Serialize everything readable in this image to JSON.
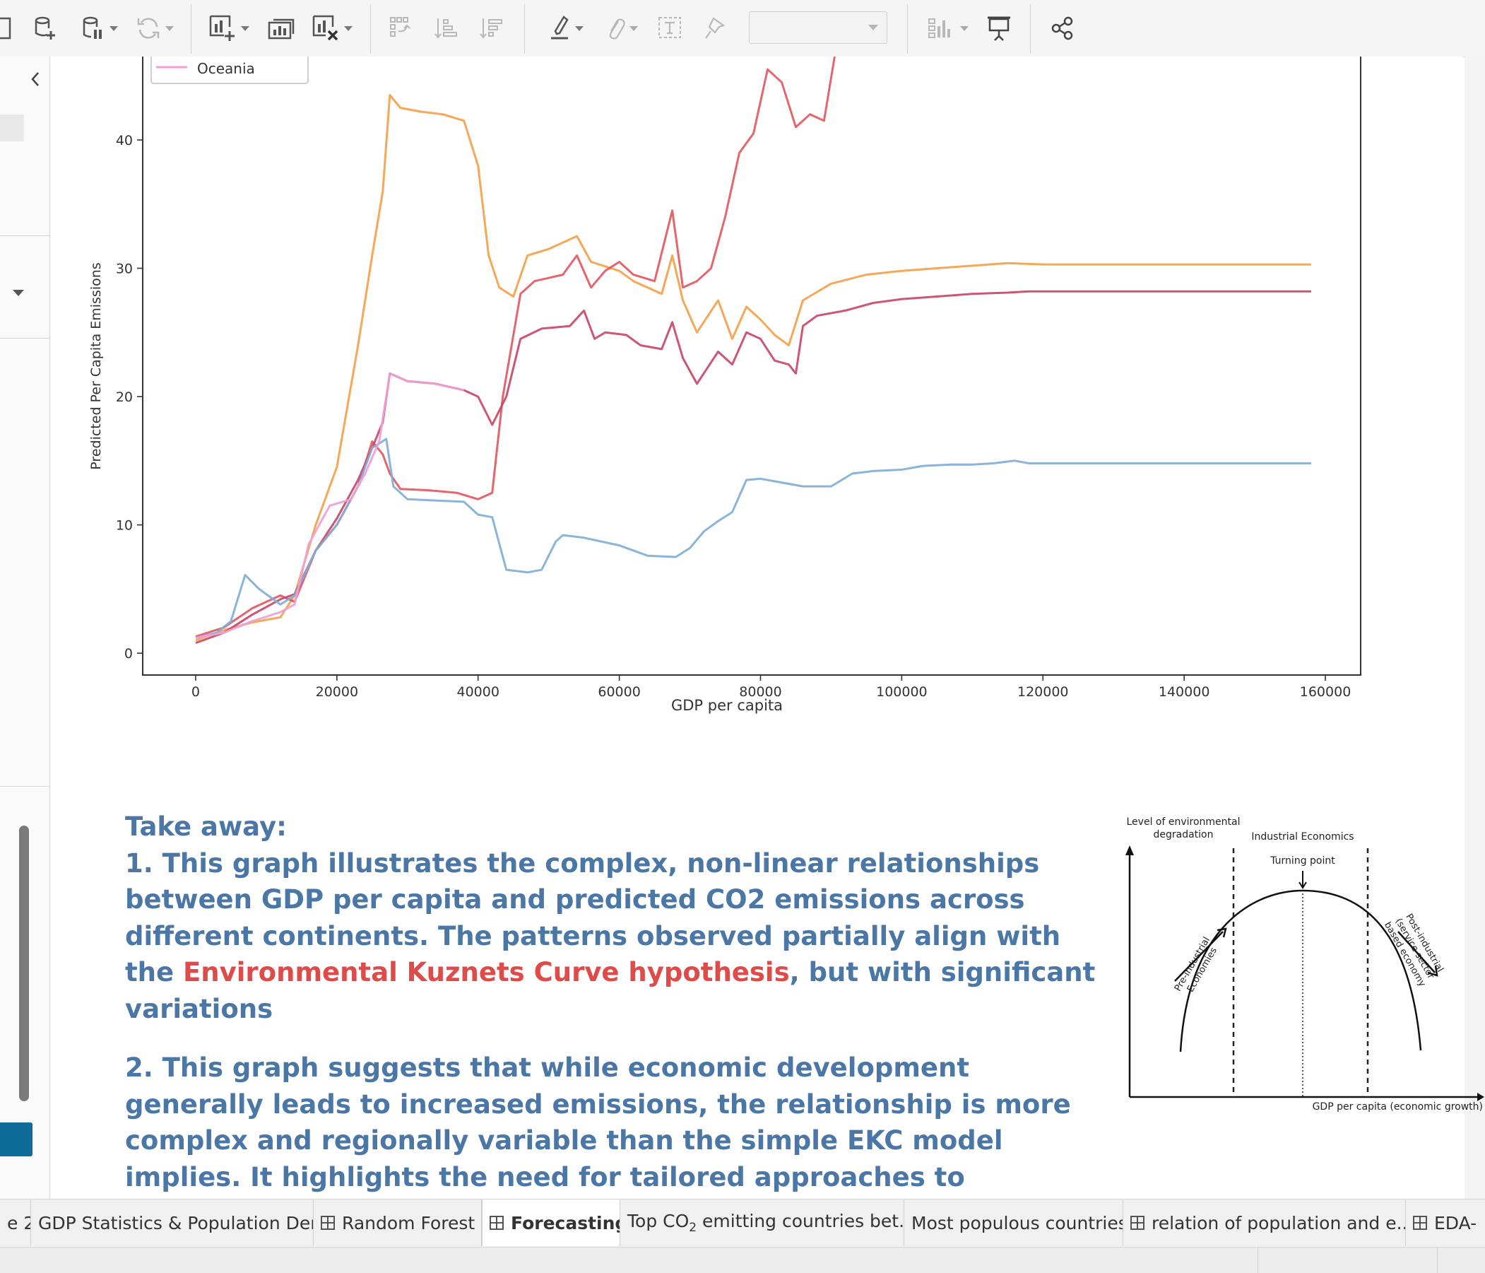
{
  "toolbar": {
    "icons": [
      "new-worksheet-icon",
      "new-data-source-icon",
      "pause-auto-updates-icon",
      "refresh-icon",
      "new-sheet-icon",
      "duplicate-sheet-icon",
      "clear-sheet-icon",
      "swap-rows-columns-icon",
      "sort-ascending-icon",
      "sort-descending-icon",
      "highlight-icon",
      "attach-icon",
      "text-label-icon",
      "pin-icon",
      "show-me-icon",
      "presentation-mode-icon",
      "share-icon"
    ],
    "view_selector_value": ""
  },
  "chart": {
    "legend_visible_entry": "Oceania",
    "xlabel": "GDP per capita",
    "ylabel": "Predicted Per Capita Emissions",
    "x_ticks": [
      "0",
      "20000",
      "40000",
      "60000",
      "80000",
      "100000",
      "120000",
      "140000",
      "160000"
    ],
    "y_ticks": [
      "0",
      "10",
      "20",
      "30",
      "40"
    ]
  },
  "chart_data": {
    "type": "line",
    "xlabel": "GDP per capita",
    "ylabel": "Predicted Per Capita Emissions",
    "xlim": [
      -7500,
      165000
    ],
    "ylim": [
      -1.7,
      46.5
    ],
    "legend": {
      "placement": "top-left",
      "visible_entries": [
        "Oceania"
      ]
    },
    "grid": false,
    "series": [
      {
        "name": "",
        "color": "#f5a04a",
        "points": [
          [
            0,
            1.0
          ],
          [
            4000,
            1.8
          ],
          [
            8000,
            2.4
          ],
          [
            12000,
            2.8
          ],
          [
            14000,
            4.5
          ],
          [
            17000,
            10.0
          ],
          [
            20000,
            14.5
          ],
          [
            23000,
            24.0
          ],
          [
            25000,
            31.0
          ],
          [
            26500,
            36.0
          ],
          [
            27500,
            43.5
          ],
          [
            29000,
            42.5
          ],
          [
            32000,
            42.2
          ],
          [
            35000,
            42.0
          ],
          [
            38000,
            41.5
          ],
          [
            40000,
            38.0
          ],
          [
            41500,
            31.0
          ],
          [
            43000,
            28.5
          ],
          [
            45000,
            27.8
          ],
          [
            47000,
            31.0
          ],
          [
            50000,
            31.5
          ],
          [
            54000,
            32.5
          ],
          [
            56000,
            30.5
          ],
          [
            60000,
            29.8
          ],
          [
            62000,
            29.0
          ],
          [
            66000,
            28.0
          ],
          [
            67500,
            31.0
          ],
          [
            69000,
            27.5
          ],
          [
            71000,
            25.0
          ],
          [
            74000,
            27.5
          ],
          [
            76000,
            24.5
          ],
          [
            78000,
            27.0
          ],
          [
            80000,
            26.0
          ],
          [
            82000,
            24.8
          ],
          [
            84000,
            24.0
          ],
          [
            86000,
            27.5
          ],
          [
            90000,
            28.8
          ],
          [
            95000,
            29.5
          ],
          [
            100000,
            29.8
          ],
          [
            105000,
            30.0
          ],
          [
            110000,
            30.2
          ],
          [
            115000,
            30.4
          ],
          [
            120000,
            30.3
          ],
          [
            158000,
            30.3
          ]
        ]
      },
      {
        "name": "",
        "color": "#e2585f",
        "points": [
          [
            0,
            1.3
          ],
          [
            4000,
            2.0
          ],
          [
            8000,
            3.5
          ],
          [
            12000,
            4.5
          ],
          [
            14000,
            4.0
          ],
          [
            17000,
            8.0
          ],
          [
            20000,
            10.0
          ],
          [
            23000,
            13.0
          ],
          [
            25000,
            16.5
          ],
          [
            26500,
            15.5
          ],
          [
            27500,
            14.0
          ],
          [
            29000,
            12.8
          ],
          [
            33000,
            12.7
          ],
          [
            37000,
            12.5
          ],
          [
            40000,
            12.0
          ],
          [
            42000,
            12.5
          ],
          [
            43500,
            20.0
          ],
          [
            46000,
            28.0
          ],
          [
            48000,
            29.0
          ],
          [
            52000,
            29.5
          ],
          [
            54000,
            31.0
          ],
          [
            56000,
            28.5
          ],
          [
            58000,
            29.8
          ],
          [
            60000,
            30.5
          ],
          [
            62000,
            29.5
          ],
          [
            65000,
            29.0
          ],
          [
            67500,
            34.5
          ],
          [
            69000,
            28.5
          ],
          [
            71000,
            29.0
          ],
          [
            73000,
            30.0
          ],
          [
            75000,
            34.0
          ],
          [
            77000,
            39.0
          ],
          [
            79000,
            40.5
          ],
          [
            81000,
            45.5
          ],
          [
            83000,
            44.5
          ],
          [
            85000,
            41.0
          ],
          [
            87000,
            42.0
          ],
          [
            89000,
            41.5
          ],
          [
            90500,
            46.5
          ]
        ]
      },
      {
        "name": "",
        "color": "#c9486a",
        "points": [
          [
            0,
            0.8
          ],
          [
            4000,
            1.6
          ],
          [
            8000,
            3.0
          ],
          [
            12000,
            4.2
          ],
          [
            14000,
            4.6
          ],
          [
            17000,
            8.0
          ],
          [
            20000,
            10.5
          ],
          [
            23000,
            13.5
          ],
          [
            25000,
            16.0
          ],
          [
            26500,
            18.0
          ],
          [
            27500,
            21.8
          ],
          [
            30000,
            21.2
          ],
          [
            34000,
            21.0
          ],
          [
            38000,
            20.5
          ],
          [
            40000,
            20.0
          ],
          [
            42000,
            17.8
          ],
          [
            44000,
            20.0
          ],
          [
            46000,
            24.5
          ],
          [
            49000,
            25.3
          ],
          [
            53000,
            25.5
          ],
          [
            55000,
            26.7
          ],
          [
            56500,
            24.5
          ],
          [
            58000,
            25.0
          ],
          [
            61000,
            24.8
          ],
          [
            63000,
            24.0
          ],
          [
            66000,
            23.7
          ],
          [
            67500,
            25.8
          ],
          [
            69000,
            23.0
          ],
          [
            71000,
            21.0
          ],
          [
            74000,
            23.5
          ],
          [
            76000,
            22.5
          ],
          [
            78000,
            25.0
          ],
          [
            80000,
            24.5
          ],
          [
            82000,
            22.8
          ],
          [
            84000,
            22.5
          ],
          [
            85000,
            21.8
          ],
          [
            86000,
            25.5
          ],
          [
            88000,
            26.3
          ],
          [
            92000,
            26.7
          ],
          [
            96000,
            27.3
          ],
          [
            100000,
            27.6
          ],
          [
            105000,
            27.8
          ],
          [
            110000,
            28.0
          ],
          [
            115000,
            28.1
          ],
          [
            118000,
            28.2
          ],
          [
            158000,
            28.2
          ]
        ]
      },
      {
        "name": "",
        "color": "#80aed6",
        "points": [
          [
            0,
            1.2
          ],
          [
            3000,
            1.6
          ],
          [
            5000,
            2.5
          ],
          [
            7000,
            6.1
          ],
          [
            9000,
            5.0
          ],
          [
            12000,
            3.8
          ],
          [
            14000,
            4.5
          ],
          [
            17000,
            8.0
          ],
          [
            20000,
            10.0
          ],
          [
            23000,
            13.0
          ],
          [
            25000,
            16.0
          ],
          [
            27000,
            16.7
          ],
          [
            28000,
            13.0
          ],
          [
            30000,
            12.0
          ],
          [
            34000,
            11.9
          ],
          [
            38000,
            11.8
          ],
          [
            40000,
            10.8
          ],
          [
            42000,
            10.6
          ],
          [
            44000,
            6.5
          ],
          [
            47000,
            6.3
          ],
          [
            49000,
            6.5
          ],
          [
            51000,
            8.7
          ],
          [
            52000,
            9.2
          ],
          [
            55000,
            9.0
          ],
          [
            60000,
            8.4
          ],
          [
            64000,
            7.6
          ],
          [
            68000,
            7.5
          ],
          [
            70000,
            8.2
          ],
          [
            72000,
            9.5
          ],
          [
            74000,
            10.3
          ],
          [
            76000,
            11.0
          ],
          [
            78000,
            13.5
          ],
          [
            80000,
            13.6
          ],
          [
            82000,
            13.4
          ],
          [
            84000,
            13.2
          ],
          [
            86000,
            13.0
          ],
          [
            90000,
            13.0
          ],
          [
            93000,
            14.0
          ],
          [
            96000,
            14.2
          ],
          [
            100000,
            14.3
          ],
          [
            103000,
            14.6
          ],
          [
            107000,
            14.7
          ],
          [
            110000,
            14.7
          ],
          [
            113000,
            14.8
          ],
          [
            116000,
            15.0
          ],
          [
            118000,
            14.8
          ],
          [
            158000,
            14.8
          ]
        ]
      },
      {
        "name": "Oceania",
        "color": "#ef9fd4",
        "points": [
          [
            0,
            1.2
          ],
          [
            4000,
            1.6
          ],
          [
            8000,
            2.5
          ],
          [
            12000,
            3.2
          ],
          [
            14000,
            3.8
          ],
          [
            16000,
            8.5
          ],
          [
            19000,
            11.5
          ],
          [
            22000,
            12.0
          ],
          [
            24000,
            14.0
          ],
          [
            26000,
            16.5
          ],
          [
            27500,
            21.8
          ],
          [
            30000,
            21.2
          ],
          [
            34000,
            21.0
          ],
          [
            38000,
            20.5
          ]
        ]
      }
    ]
  },
  "takeaway": {
    "heading": "Take away:",
    "p1_a": "1. This graph illustrates the complex, non-linear relationships between GDP per capita and predicted CO2 emissions across different continents. The patterns observed partially align with the ",
    "p1_highlight": "Environmental Kuznets Curve hypothesis",
    "p1_b": ", but with significant variations",
    "p2": "2. This graph suggests that while economic development generally leads to increased emissions, the relationship is more complex and regionally variable than the simple EKC model implies. It highlights the need for tailored approaches to emissions reduction that consider each region’s unique development path."
  },
  "ekc": {
    "y_axis_label_line1": "Level of environmental",
    "y_axis_label_line2": "degradation",
    "x_axis_label": "GDP per capita (economic growth)",
    "middle_label": "Industrial Economics",
    "turning_point": "Turning point",
    "left_label_line1": "Pre-industrial",
    "left_label_line2": "Economies",
    "right_label_line1": "Post-industrial",
    "right_label_line2": "(service sector",
    "right_label_line3": "based economy"
  },
  "tabs": [
    {
      "label": "e 2",
      "grid": false
    },
    {
      "label": "GDP Statistics & Population Den...",
      "grid": false
    },
    {
      "label": "Random Forest",
      "grid": true
    },
    {
      "label": "Forecasting",
      "grid": true,
      "active": true
    },
    {
      "label_prefix": "Top CO",
      "label_sub": "2",
      "label_suffix": " emitting countries bet...",
      "grid": false
    },
    {
      "label": "Most populous countries",
      "grid": false
    },
    {
      "label": "relation of population and e...",
      "grid": true
    },
    {
      "label": "EDA-",
      "grid": true
    }
  ]
}
